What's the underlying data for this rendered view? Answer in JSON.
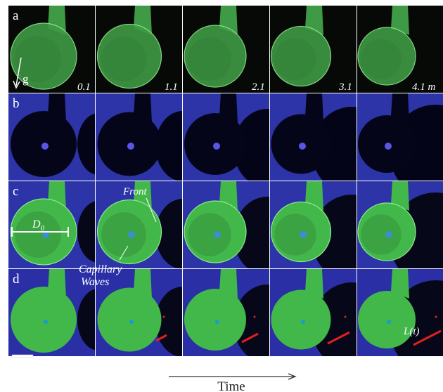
{
  "panels": [
    {
      "label": "a"
    },
    {
      "label": "b"
    },
    {
      "label": "c"
    },
    {
      "label": "d"
    }
  ],
  "times": [
    "0.1",
    "1.1",
    "2.1",
    "3.1",
    "4.1 m"
  ],
  "gravity_label": "g",
  "annotations": {
    "front": "Front",
    "diameter": {
      "text": "D",
      "subscript": "0"
    },
    "capillary_waves": [
      "Capillary",
      "Waves"
    ],
    "length": "L(t)"
  },
  "axis_label": "Time"
}
